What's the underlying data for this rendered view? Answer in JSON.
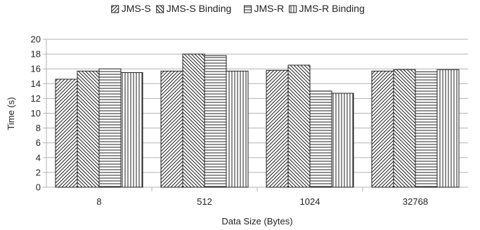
{
  "chart_data": {
    "type": "bar",
    "xlabel": "Data Size (Bytes)",
    "ylabel": "Time (s)",
    "ylim": [
      0,
      20
    ],
    "ytick_step": 2,
    "grid": true,
    "legend_position": "top",
    "categories": [
      "8",
      "512",
      "1024",
      "32768"
    ],
    "series": [
      {
        "name": "JMS-S",
        "pattern": "diag-up",
        "values": [
          14.6,
          15.7,
          15.8,
          15.7
        ]
      },
      {
        "name": "JMS-S Binding",
        "pattern": "diag-down",
        "values": [
          15.7,
          18.0,
          16.5,
          15.9
        ]
      },
      {
        "name": "JMS-R",
        "pattern": "horizontal",
        "values": [
          16.0,
          17.8,
          13.0,
          15.6
        ]
      },
      {
        "name": "JMS-R Binding",
        "pattern": "vertical",
        "values": [
          15.5,
          15.7,
          12.7,
          15.9
        ]
      }
    ]
  }
}
